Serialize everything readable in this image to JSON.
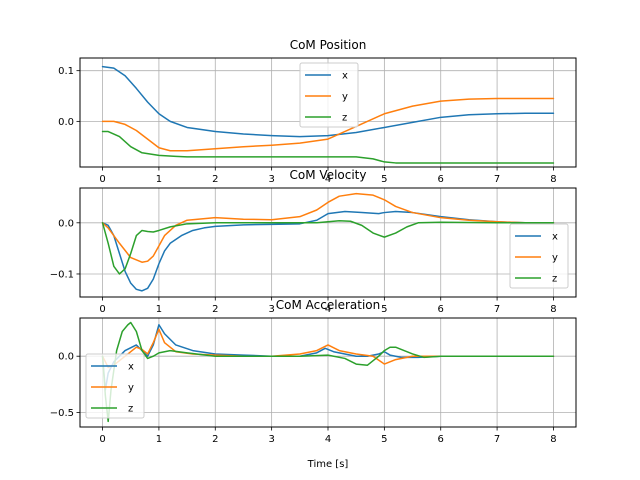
{
  "chart_data": [
    {
      "type": "line",
      "title": "CoM Position",
      "xlabel": "",
      "ylabel": "",
      "xlim": [
        -0.4,
        8.4
      ],
      "ylim": [
        -0.09,
        0.125
      ],
      "xticks": [
        0,
        1,
        2,
        3,
        4,
        5,
        6,
        7,
        8
      ],
      "xtick_labels": [
        "0",
        "1",
        "2",
        "3",
        "4",
        "5",
        "6",
        "7",
        "8"
      ],
      "yticks": [
        0.1,
        0.0
      ],
      "ytick_labels": [
        "0.1",
        "0.0"
      ],
      "grid": true,
      "legend_position": "top-center",
      "series": [
        {
          "name": "x",
          "color": "#1f77b4",
          "x": [
            0,
            0.2,
            0.4,
            0.6,
            0.8,
            1.0,
            1.2,
            1.5,
            2.0,
            2.5,
            3.0,
            3.5,
            4.0,
            4.5,
            5.0,
            5.5,
            6.0,
            6.5,
            7.0,
            7.5,
            8.0
          ],
          "y": [
            0.108,
            0.105,
            0.09,
            0.065,
            0.038,
            0.015,
            0.0,
            -0.012,
            -0.02,
            -0.025,
            -0.028,
            -0.03,
            -0.028,
            -0.022,
            -0.012,
            -0.002,
            0.008,
            0.013,
            0.015,
            0.016,
            0.016
          ]
        },
        {
          "name": "y",
          "color": "#ff7f0e",
          "x": [
            0,
            0.2,
            0.4,
            0.6,
            0.8,
            1.0,
            1.2,
            1.5,
            2.0,
            2.5,
            3.0,
            3.5,
            4.0,
            4.5,
            5.0,
            5.5,
            6.0,
            6.5,
            7.0,
            7.5,
            8.0
          ],
          "y": [
            0.0,
            0.0,
            -0.006,
            -0.018,
            -0.035,
            -0.052,
            -0.058,
            -0.058,
            -0.054,
            -0.05,
            -0.047,
            -0.043,
            -0.035,
            -0.01,
            0.015,
            0.03,
            0.04,
            0.044,
            0.045,
            0.045,
            0.045
          ]
        },
        {
          "name": "z",
          "color": "#2ca02c",
          "x": [
            0,
            0.1,
            0.3,
            0.5,
            0.7,
            1.0,
            1.3,
            1.5,
            2.0,
            3.0,
            4.0,
            4.5,
            4.8,
            5.0,
            5.2,
            5.5,
            6.0,
            7.0,
            8.0
          ],
          "y": [
            -0.02,
            -0.02,
            -0.03,
            -0.05,
            -0.062,
            -0.067,
            -0.069,
            -0.07,
            -0.07,
            -0.07,
            -0.07,
            -0.07,
            -0.074,
            -0.08,
            -0.082,
            -0.082,
            -0.082,
            -0.082,
            -0.082
          ]
        }
      ]
    },
    {
      "type": "line",
      "title": "CoM Velocity",
      "xlabel": "",
      "ylabel": "",
      "xlim": [
        -0.4,
        8.4
      ],
      "ylim": [
        -0.145,
        0.068
      ],
      "xticks": [
        0,
        1,
        2,
        3,
        4,
        5,
        6,
        7,
        8
      ],
      "xtick_labels": [
        "0",
        "1",
        "2",
        "3",
        "4",
        "5",
        "6",
        "7",
        "8"
      ],
      "yticks": [
        0.0,
        -0.1
      ],
      "ytick_labels": [
        "0.0",
        "−0.1"
      ],
      "grid": true,
      "legend_position": "lower-right",
      "series": [
        {
          "name": "x",
          "color": "#1f77b4",
          "x": [
            0,
            0.1,
            0.2,
            0.3,
            0.4,
            0.5,
            0.6,
            0.7,
            0.8,
            0.9,
            1.0,
            1.1,
            1.2,
            1.4,
            1.6,
            1.8,
            2.0,
            2.5,
            3.0,
            3.5,
            3.8,
            4.0,
            4.3,
            4.6,
            4.9,
            5.0,
            5.2,
            5.5,
            6.0,
            6.5,
            7.0,
            7.5,
            8.0
          ],
          "y": [
            0.0,
            -0.005,
            -0.025,
            -0.06,
            -0.095,
            -0.118,
            -0.13,
            -0.133,
            -0.128,
            -0.11,
            -0.08,
            -0.055,
            -0.04,
            -0.025,
            -0.015,
            -0.01,
            -0.007,
            -0.004,
            -0.003,
            -0.002,
            0.005,
            0.018,
            0.022,
            0.02,
            0.018,
            0.02,
            0.022,
            0.02,
            0.012,
            0.006,
            0.002,
            0.0,
            0.0
          ]
        },
        {
          "name": "y",
          "color": "#ff7f0e",
          "x": [
            0,
            0.1,
            0.3,
            0.5,
            0.7,
            0.8,
            0.9,
            1.0,
            1.1,
            1.3,
            1.5,
            2.0,
            2.5,
            3.0,
            3.5,
            3.8,
            4.0,
            4.2,
            4.5,
            4.8,
            5.0,
            5.2,
            5.5,
            6.0,
            6.5,
            7.0,
            7.5,
            8.0
          ],
          "y": [
            0.0,
            -0.01,
            -0.04,
            -0.068,
            -0.077,
            -0.075,
            -0.065,
            -0.045,
            -0.025,
            -0.005,
            0.005,
            0.01,
            0.007,
            0.006,
            0.012,
            0.025,
            0.04,
            0.052,
            0.057,
            0.054,
            0.045,
            0.032,
            0.02,
            0.01,
            0.005,
            0.002,
            0.0,
            0.0
          ]
        },
        {
          "name": "z",
          "color": "#2ca02c",
          "x": [
            0,
            0.1,
            0.2,
            0.3,
            0.4,
            0.5,
            0.6,
            0.7,
            0.8,
            0.9,
            1.0,
            1.2,
            1.5,
            2.0,
            2.5,
            3.0,
            3.5,
            3.8,
            4.0,
            4.2,
            4.4,
            4.6,
            4.8,
            5.0,
            5.2,
            5.4,
            5.6,
            6.0,
            7.0,
            8.0
          ],
          "y": [
            0.0,
            -0.04,
            -0.085,
            -0.1,
            -0.09,
            -0.06,
            -0.025,
            -0.015,
            -0.017,
            -0.018,
            -0.015,
            -0.008,
            -0.002,
            0.0,
            0.0,
            0.0,
            0.0,
            0.0,
            0.002,
            0.004,
            0.003,
            -0.005,
            -0.02,
            -0.028,
            -0.02,
            -0.008,
            0.0,
            0.001,
            0.0,
            0.0
          ]
        }
      ]
    },
    {
      "type": "line",
      "title": "CoM Acceleration",
      "xlabel": "Time [s]",
      "ylabel": "",
      "xlim": [
        -0.4,
        8.4
      ],
      "ylim": [
        -0.63,
        0.34
      ],
      "xticks": [
        0,
        1,
        2,
        3,
        4,
        5,
        6,
        7,
        8
      ],
      "xtick_labels": [
        "0",
        "1",
        "2",
        "3",
        "4",
        "5",
        "6",
        "7",
        "8"
      ],
      "yticks": [
        0.0,
        -0.5
      ],
      "ytick_labels": [
        "0.0",
        "−0.5"
      ],
      "grid": true,
      "legend_position": "lower-left",
      "series": [
        {
          "name": "x",
          "color": "#1f77b4",
          "x": [
            0,
            0.05,
            0.1,
            0.2,
            0.4,
            0.6,
            0.7,
            0.8,
            0.9,
            1.0,
            1.1,
            1.3,
            1.6,
            2.0,
            2.5,
            3.0,
            3.5,
            3.8,
            3.95,
            4.1,
            4.3,
            4.5,
            4.7,
            4.9,
            5.0,
            5.1,
            5.3,
            5.6,
            6.0,
            6.5,
            7.0,
            8.0
          ],
          "y": [
            0.0,
            -0.3,
            -0.15,
            -0.05,
            0.05,
            0.1,
            0.05,
            0.0,
            0.1,
            0.28,
            0.2,
            0.1,
            0.05,
            0.02,
            0.01,
            0.0,
            0.0,
            0.03,
            0.07,
            0.04,
            0.02,
            0.0,
            0.0,
            0.02,
            0.04,
            0.01,
            -0.01,
            -0.01,
            0.0,
            0.0,
            0.0,
            0.0
          ]
        },
        {
          "name": "y",
          "color": "#ff7f0e",
          "x": [
            0,
            0.1,
            0.2,
            0.4,
            0.6,
            0.7,
            0.8,
            0.9,
            1.0,
            1.1,
            1.3,
            1.6,
            2.0,
            2.5,
            3.0,
            3.5,
            3.8,
            4.0,
            4.2,
            4.5,
            4.8,
            5.0,
            5.2,
            5.5,
            6.0,
            6.5,
            7.0,
            8.0
          ],
          "y": [
            0.0,
            -0.1,
            -0.08,
            0.0,
            0.08,
            0.06,
            0.02,
            0.12,
            0.24,
            0.12,
            0.04,
            0.02,
            0.01,
            0.0,
            0.0,
            0.02,
            0.05,
            0.1,
            0.05,
            0.02,
            0.0,
            -0.07,
            -0.03,
            0.0,
            0.0,
            0.0,
            0.0,
            0.0
          ]
        },
        {
          "name": "z",
          "color": "#2ca02c",
          "x": [
            0,
            0.05,
            0.1,
            0.15,
            0.25,
            0.35,
            0.45,
            0.5,
            0.6,
            0.7,
            0.8,
            0.9,
            1.0,
            1.2,
            1.5,
            2.0,
            2.5,
            3.0,
            3.5,
            4.0,
            4.3,
            4.5,
            4.7,
            4.9,
            5.0,
            5.1,
            5.2,
            5.35,
            5.5,
            5.7,
            6.0,
            7.0,
            8.0
          ],
          "y": [
            0.0,
            -0.35,
            -0.58,
            -0.3,
            0.05,
            0.22,
            0.28,
            0.3,
            0.22,
            0.05,
            -0.02,
            0.0,
            0.03,
            0.05,
            0.03,
            0.0,
            0.0,
            0.0,
            0.0,
            0.01,
            -0.02,
            -0.07,
            -0.08,
            0.0,
            0.05,
            0.08,
            0.08,
            0.05,
            0.02,
            -0.01,
            0.0,
            0.0,
            0.0
          ]
        }
      ]
    }
  ]
}
